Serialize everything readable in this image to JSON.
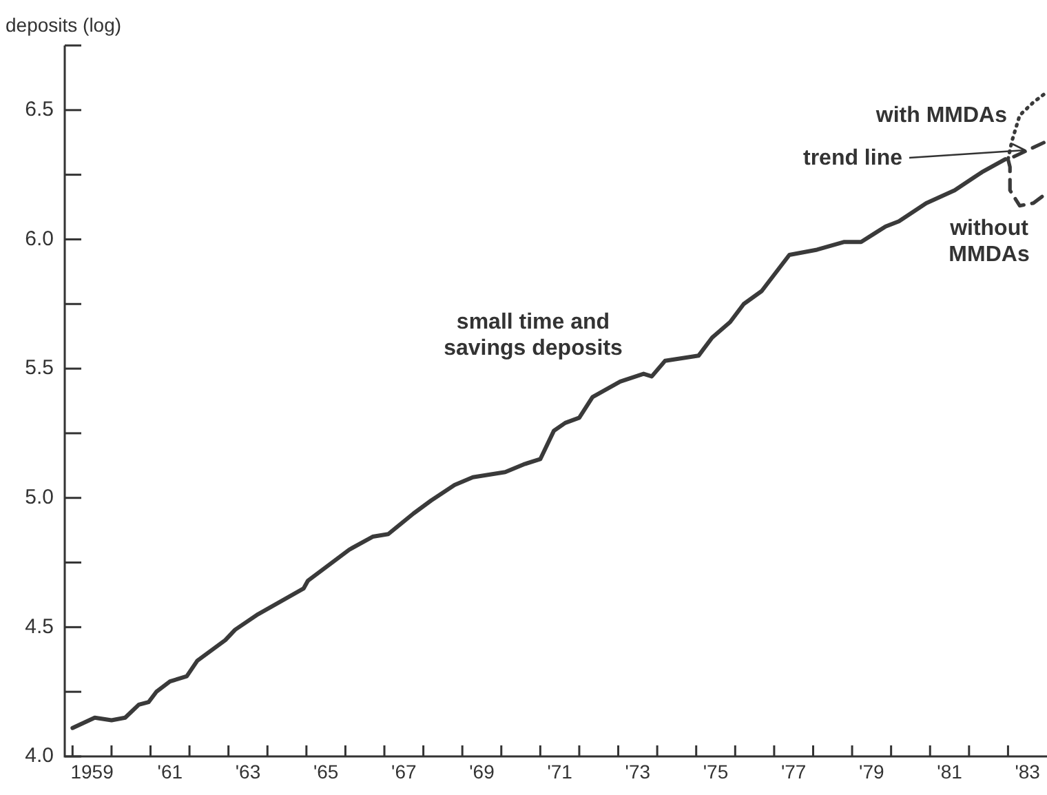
{
  "chart_data": {
    "type": "line",
    "ylabel": "deposits (log)",
    "xlim": [
      1958.3,
      1983.5
    ],
    "ylim": [
      4,
      6.75
    ],
    "yticks": [
      {
        "value": 4,
        "label": "4.0"
      },
      {
        "value": 4.25,
        "label": null
      },
      {
        "value": 4.5,
        "label": "4.5"
      },
      {
        "value": 4.75,
        "label": null
      },
      {
        "value": 5,
        "label": "5.0"
      },
      {
        "value": 5.25,
        "label": null
      },
      {
        "value": 5.5,
        "label": "5.5"
      },
      {
        "value": 5.75,
        "label": null
      },
      {
        "value": 6,
        "label": "6.0"
      },
      {
        "value": 6.25,
        "label": null
      },
      {
        "value": 6.5,
        "label": "6.5"
      },
      {
        "value": 6.75,
        "label": null
      }
    ],
    "xticks": [
      {
        "value": 1958.5,
        "label": null
      },
      1959,
      {
        "value": 1959.5,
        "label": null
      },
      {
        "value": 1960.5,
        "label": null
      },
      {
        "value": 1961,
        "label": "'61"
      },
      {
        "value": 1961.5,
        "label": null
      },
      {
        "value": 1962.5,
        "label": null
      },
      {
        "value": 1963,
        "label": "'63"
      },
      {
        "value": 1963.5,
        "label": null
      },
      {
        "value": 1964.5,
        "label": null
      },
      {
        "value": 1965,
        "label": "'65"
      },
      {
        "value": 1965.5,
        "label": null
      },
      {
        "value": 1966.5,
        "label": null
      },
      {
        "value": 1967,
        "label": "'67"
      },
      {
        "value": 1967.5,
        "label": null
      },
      {
        "value": 1968.5,
        "label": null
      },
      {
        "value": 1969,
        "label": "'69"
      },
      {
        "value": 1969.5,
        "label": null
      },
      {
        "value": 1970.5,
        "label": null
      },
      {
        "value": 1971,
        "label": "'71"
      },
      {
        "value": 1971.5,
        "label": null
      },
      {
        "value": 1972.5,
        "label": null
      },
      {
        "value": 1973,
        "label": "'73"
      },
      {
        "value": 1973.5,
        "label": null
      },
      {
        "value": 1974.5,
        "label": null
      },
      {
        "value": 1975,
        "label": "'75"
      },
      {
        "value": 1975.5,
        "label": null
      },
      {
        "value": 1976.5,
        "label": null
      },
      {
        "value": 1977,
        "label": "'77"
      },
      {
        "value": 1977.5,
        "label": null
      },
      {
        "value": 1978.5,
        "label": null
      },
      {
        "value": 1979,
        "label": "'79"
      },
      {
        "value": 1979.5,
        "label": null
      },
      {
        "value": 1980.5,
        "label": null
      },
      {
        "value": 1981,
        "label": "'81"
      },
      {
        "value": 1981.5,
        "label": null
      },
      {
        "value": 1982.5,
        "label": null
      },
      {
        "value": 1983,
        "label": "'83"
      }
    ],
    "grid": false,
    "legend": false,
    "marker": "none",
    "series": [
      {
        "name": "small time and savings deposits",
        "color": "#3a3a3a",
        "line_style": "solid",
        "x": [
          1958.5,
          1959.07,
          1959.5,
          1959.85,
          1960.2,
          1960.45,
          1960.65,
          1961,
          1961.43,
          1961.7,
          1962.42,
          1962.67,
          1963.26,
          1964.43,
          1964.54,
          1965.6,
          1966.2,
          1966.6,
          1967.25,
          1967.7,
          1968.3,
          1968.77,
          1969.6,
          1970.08,
          1970.5,
          1970.85,
          1971.14,
          1971.5,
          1971.84,
          1972.55,
          1973.15,
          1973.36,
          1973.7,
          1974.56,
          1974.91,
          1975.37,
          1975.72,
          1976.18,
          1976.89,
          1977.6,
          1978.3,
          1978.73,
          1979.36,
          1979.7,
          1980.4,
          1981.13,
          1981.83,
          1982.43
        ],
        "values": [
          4.11,
          4.15,
          4.14,
          4.15,
          4.2,
          4.21,
          4.25,
          4.29,
          4.31,
          4.37,
          4.45,
          4.49,
          4.55,
          4.65,
          4.68,
          4.8,
          4.85,
          4.86,
          4.94,
          4.99,
          5.05,
          5.08,
          5.1,
          5.13,
          5.15,
          5.26,
          5.29,
          5.31,
          5.39,
          5.45,
          5.48,
          5.47,
          5.53,
          5.55,
          5.62,
          5.68,
          5.75,
          5.8,
          5.94,
          5.96,
          5.99,
          5.99,
          6.05,
          6.07,
          6.14,
          6.19,
          6.26,
          6.31
        ]
      },
      {
        "name": "with MMDAs",
        "color": "#3a3a3a",
        "line_style": "dotted",
        "x": [
          1982.5,
          1982.6,
          1982.8,
          1983.15,
          1983.5
        ],
        "values": [
          6.31,
          6.38,
          6.48,
          6.53,
          6.57
        ]
      },
      {
        "name": "without MMDAs",
        "color": "#3a3a3a",
        "line_style": "dashed",
        "x": [
          1982.5,
          1982.55,
          1982.55,
          1982.8,
          1983.15,
          1983.5
        ],
        "values": [
          6.31,
          6.28,
          6.19,
          6.13,
          6.14,
          6.18
        ]
      },
      {
        "name": "trend line",
        "color": "#3a3a3a",
        "line_style": "dashed",
        "x": [
          1982.65,
          1983.5
        ],
        "values": [
          6.32,
          6.38
        ]
      }
    ]
  }
}
